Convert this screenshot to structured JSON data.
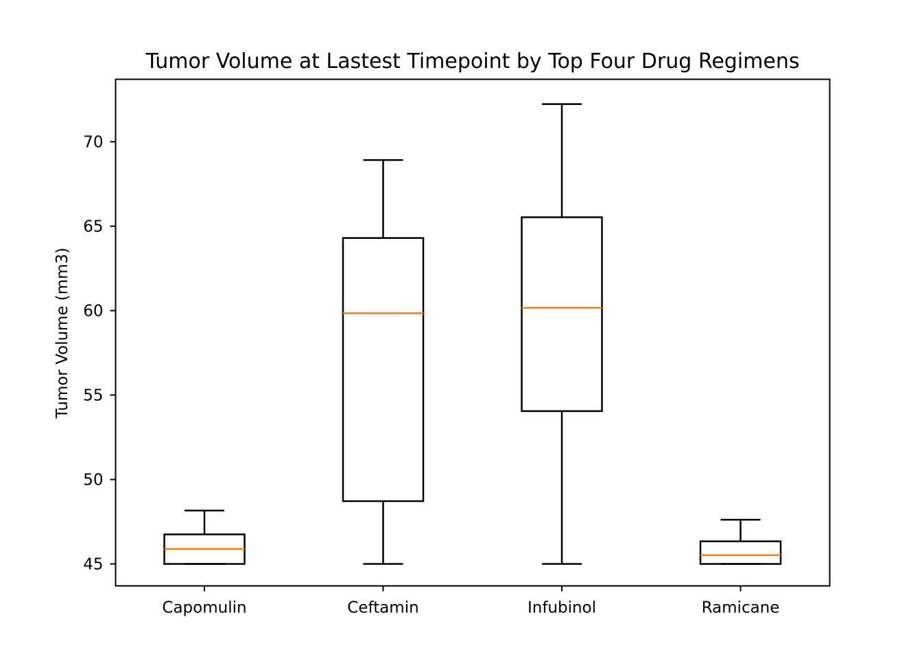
{
  "chart_data": {
    "type": "box",
    "title": "Tumor Volume at Lastest Timepoint by Top Four Drug Regimens",
    "xlabel": "",
    "ylabel": "Tumor Volume (mm3)",
    "ylim": [
      43.7,
      73.7
    ],
    "yticks": [
      45,
      50,
      55,
      60,
      65,
      70
    ],
    "categories": [
      "Capomulin",
      "Ceftamin",
      "Infubinol",
      "Ramicane"
    ],
    "boxes": [
      {
        "category": "Capomulin",
        "whisker_low": 45.0,
        "q1": 45.0,
        "median": 45.89,
        "q3": 46.75,
        "whisker_high": 48.16
      },
      {
        "category": "Ceftamin",
        "whisker_low": 45.0,
        "q1": 48.72,
        "median": 59.85,
        "q3": 64.3,
        "whisker_high": 68.92
      },
      {
        "category": "Infubinol",
        "whisker_low": 45.0,
        "q1": 54.05,
        "median": 60.17,
        "q3": 65.53,
        "whisker_high": 72.23
      },
      {
        "category": "Ramicane",
        "whisker_low": 45.0,
        "q1": 45.0,
        "median": 45.52,
        "q3": 46.34,
        "whisker_high": 47.62
      }
    ],
    "box_color": "#000000",
    "median_color": "#ff7f0e",
    "grid": false
  }
}
